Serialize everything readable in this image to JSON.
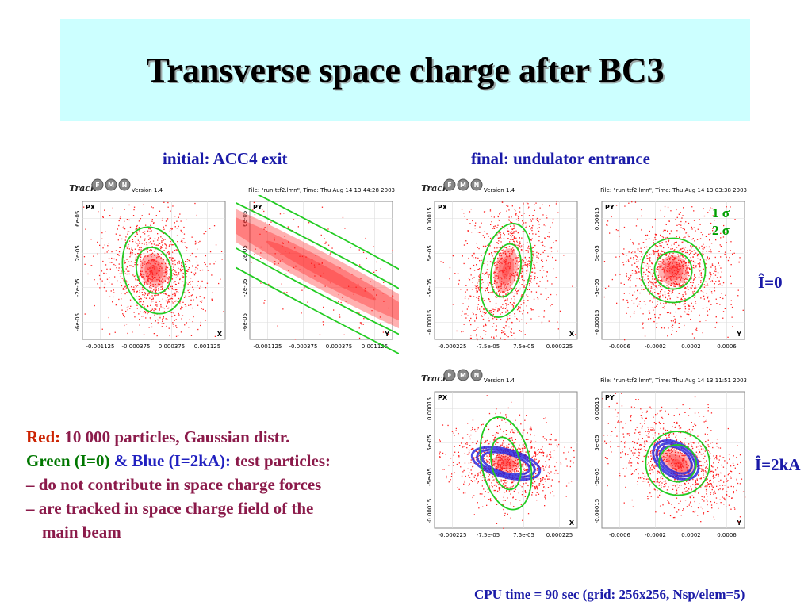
{
  "title": "Transverse space charge after BC3",
  "column_headers": {
    "initial": "initial: ACC4 exit",
    "final": "final: undulator entrance"
  },
  "sigma_legend": {
    "one": "1 σ",
    "two": "2 σ"
  },
  "row_labels": {
    "zero": "Î=0",
    "twoka": "Î=2kA"
  },
  "notes": {
    "red_label": "Red:",
    "red_text": "10 000 particles, Gaussian distr.",
    "green_label": "Green (I=0)",
    "amp": "&",
    "blue_label": "Blue (I=2kA):",
    "test_text": "test particles:",
    "bullet1": "– do not contribute in space charge forces",
    "bullet2": "– are tracked in space charge field of the",
    "bullet2b": "main beam"
  },
  "cpu": "CPU time = 90 sec (grid: 256x256, Nsp/elem=5)",
  "colors": {
    "red_particles": "#ff2020",
    "green_test": "#22cc22",
    "blue_test": "#2020dd",
    "header_blue": "#1a1aa8"
  },
  "headers": {
    "version": "Version 1.4",
    "logo": "Track",
    "logo_letters": [
      "F",
      "M",
      "N"
    ],
    "file_initial": "File: \"run-ttf2.lmn\", Time: Thu Aug 14 13:44:28 2003",
    "file_final_i0": "File: \"run-ttf2.lmn\", Time: Thu Aug 14 13:03:38 2003",
    "file_final_i2": "File: \"run-ttf2.lmn\", Time: Thu Aug 14 13:11:51 2003"
  },
  "chart_data": [
    {
      "type": "scatter",
      "id": "init_x",
      "ylabel": "PX",
      "xlabel": "X",
      "xticks": [
        "-0.001125",
        "-0.000375",
        "0.000375",
        "0.001125"
      ],
      "yticks": [
        "6e-05",
        "2e-05",
        "-2e-05",
        "-6e-05"
      ],
      "xlim": [
        -0.0015,
        0.0015
      ],
      "ylim": [
        -8e-05,
        8e-05
      ],
      "cloud": {
        "center": [
          0.0,
          0.0
        ],
        "sigma_major": 0.00048,
        "sigma_minor": 1.1e-05,
        "angle_deg": 14,
        "spread": 1.5
      },
      "ellipses": [
        {
          "label": "1 σ",
          "a": 0.00036,
          "b": 9e-06
        },
        {
          "label": "2 σ",
          "a": 0.00064,
          "b": 1.7e-05
        }
      ]
    },
    {
      "type": "scatter",
      "id": "init_y",
      "ylabel": "PY",
      "xlabel": "Y",
      "xticks": [
        "-0.001125",
        "-0.000375",
        "0.000375",
        "0.001125"
      ],
      "yticks": [
        "6e-05",
        "2e-05",
        "-2e-05",
        "-6e-05"
      ],
      "xlim": [
        -0.0015,
        0.0015
      ],
      "ylim": [
        -8e-05,
        8e-05
      ],
      "cloud": {
        "center": [
          0.0,
          0.0
        ],
        "sigma_major": 0.0006,
        "sigma_minor": 0.00012,
        "angle_deg": 62,
        "spread": 1.5
      },
      "ellipses": [
        {
          "label": "1 σ",
          "a": 0.00045,
          "b": 0.0001
        },
        {
          "label": "2 σ",
          "a": 0.0008,
          "b": 0.00018
        }
      ]
    },
    {
      "type": "scatter",
      "id": "fin0_x",
      "ylabel": "PX",
      "xlabel": "X",
      "xticks": [
        "-0.000225",
        "-7.5e-05",
        "7.5e-05",
        "0.000225"
      ],
      "yticks": [
        "0.00015",
        "5e-05",
        "-5e-05",
        "-0.00015"
      ],
      "xlim": [
        -0.0003,
        0.0003
      ],
      "ylim": [
        -0.0002,
        0.0002
      ],
      "cloud": {
        "center": [
          0.0,
          0.0
        ],
        "sigma_major": 8e-05,
        "sigma_minor": 3.6e-05,
        "angle_deg": -12,
        "spread": 1.4
      },
      "ellipses": [
        {
          "label": "1 σ",
          "a": 6e-05,
          "b": 2.6e-05
        },
        {
          "label": "2 σ",
          "a": 0.000102,
          "b": 4.6e-05
        }
      ]
    },
    {
      "type": "scatter",
      "id": "fin0_y",
      "ylabel": "PY",
      "xlabel": "Y",
      "xticks": [
        "-0.0006",
        "-0.0002",
        "0.0002",
        "0.0006"
      ],
      "yticks": [
        "0.00015",
        "5e-05",
        "-5e-05",
        "-0.00015"
      ],
      "xlim": [
        -0.0008,
        0.0008
      ],
      "ylim": [
        -0.0002,
        0.0002
      ],
      "cloud": {
        "center": [
          0.0,
          0.0
        ],
        "sigma_major": 0.00028,
        "sigma_minor": 2.4e-05,
        "angle_deg": -40,
        "spread": 1.4
      },
      "ellipses": [
        {
          "label": "1 σ",
          "a": 0.00021,
          "b": 1.8e-05
        },
        {
          "label": "2 σ",
          "a": 0.00036,
          "b": 3.1e-05
        }
      ]
    },
    {
      "type": "scatter",
      "id": "fin2_x",
      "ylabel": "PX",
      "xlabel": "X",
      "xticks": [
        "-0.000225",
        "-7.5e-05",
        "7.5e-05",
        "0.000225"
      ],
      "yticks": [
        "0.00015",
        "5e-05",
        "-5e-05",
        "-0.00015"
      ],
      "xlim": [
        -0.0003,
        0.0003
      ],
      "ylim": [
        -0.0002,
        0.0002
      ],
      "cloud": {
        "center": [
          0.0,
          -1e-05
        ],
        "sigma_major": 6.5e-05,
        "sigma_minor": 2.2e-05,
        "angle_deg": 80,
        "spread": 1.6
      },
      "blue_ring": {
        "center": [
          0.0,
          -1e-05
        ],
        "a": 5.8e-05,
        "b": 3.4e-05,
        "angle_deg": 75
      },
      "ellipses": [
        {
          "label": "1 σ",
          "a": 6e-05,
          "b": 2.6e-05,
          "angle_deg": 12
        },
        {
          "label": "2 σ",
          "a": 0.000102,
          "b": 4.6e-05,
          "angle_deg": 12
        }
      ]
    },
    {
      "type": "scatter",
      "id": "fin2_y",
      "ylabel": "PY",
      "xlabel": "Y",
      "xticks": [
        "-0.0006",
        "-0.0002",
        "0.0002",
        "0.0006"
      ],
      "yticks": [
        "0.00015",
        "5e-05",
        "-5e-05",
        "-0.00015"
      ],
      "xlim": [
        -0.0008,
        0.0008
      ],
      "ylim": [
        -0.0002,
        0.0002
      ],
      "cloud": {
        "center": [
          5e-05,
          -1e-05
        ],
        "sigma_major": 0.00034,
        "sigma_minor": 1.8e-05,
        "angle_deg": -34,
        "spread": 1.5
      },
      "blue_ring": {
        "center": [
          3e-05,
          0.0
        ],
        "a": 0.00028,
        "b": 1.6e-05,
        "angle_deg": -34
      },
      "ellipses": [
        {
          "label": "1 σ",
          "a": 0.00021,
          "b": 1.8e-05,
          "angle_deg": -40
        },
        {
          "label": "2 σ",
          "a": 0.00036,
          "b": 3.1e-05,
          "angle_deg": -40
        }
      ]
    }
  ]
}
